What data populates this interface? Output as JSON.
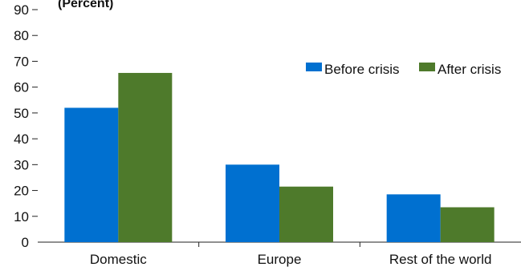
{
  "chart_data": {
    "type": "bar",
    "ylabel": "(Percent)",
    "categories": [
      "Domestic",
      "Europe",
      "Rest of the world"
    ],
    "series": [
      {
        "name": "Before crisis",
        "values": [
          52,
          30,
          18.5
        ]
      },
      {
        "name": "After crisis",
        "values": [
          65.5,
          21.5,
          13.5
        ]
      }
    ],
    "ylim": [
      0,
      90
    ],
    "yticks": [
      "0",
      "10",
      "20",
      "30",
      "40",
      "50",
      "60",
      "70",
      "80",
      "90"
    ],
    "grid": false,
    "legend": "top-right",
    "colors": {
      "Before crisis": "#0070d0",
      "After crisis": "#4e7a2b"
    }
  }
}
